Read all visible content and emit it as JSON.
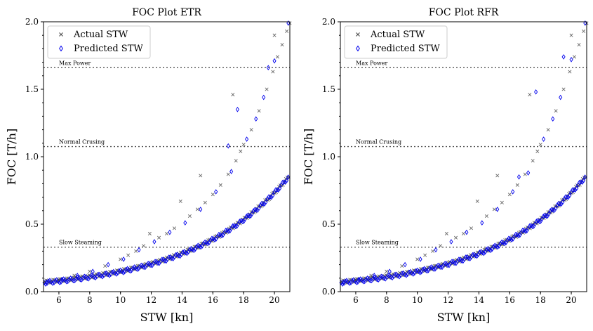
{
  "chart_data": [
    {
      "type": "scatter",
      "title": "FOC Plot ETR",
      "xlabel": "STW [kn]",
      "ylabel": "FOC [T/h]",
      "xlim": [
        5,
        21
      ],
      "ylim": [
        0.0,
        2.0
      ],
      "xticks": [
        "6",
        "8",
        "10",
        "12",
        "14",
        "16",
        "18",
        "20"
      ],
      "yticks": [
        "0.0",
        "0.5",
        "1.0",
        "1.5",
        "2.0"
      ],
      "grid": false,
      "legend_position": "top-left",
      "reference_lines": [
        {
          "label": "Max Power",
          "y": 1.66
        },
        {
          "label": "Normal Crusing",
          "y": 1.075
        },
        {
          "label": "Slow Steaming",
          "y": 0.33
        }
      ],
      "series": [
        {
          "name": "Actual STW",
          "marker": "x",
          "color": "#444444",
          "points": [
            [
              5.1,
              0.07
            ],
            [
              6.0,
              0.09
            ],
            [
              7.0,
              0.12
            ],
            [
              8.0,
              0.15
            ],
            [
              9.0,
              0.19
            ],
            [
              10.0,
              0.24
            ],
            [
              10.5,
              0.27
            ],
            [
              11.0,
              0.3
            ],
            [
              11.5,
              0.34
            ],
            [
              11.9,
              0.43
            ],
            [
              12.5,
              0.4
            ],
            [
              13.0,
              0.43
            ],
            [
              13.5,
              0.47
            ],
            [
              13.9,
              0.67
            ],
            [
              14.5,
              0.56
            ],
            [
              15.0,
              0.61
            ],
            [
              15.2,
              0.86
            ],
            [
              15.5,
              0.66
            ],
            [
              16.0,
              0.72
            ],
            [
              16.5,
              0.79
            ],
            [
              17.0,
              0.87
            ],
            [
              17.5,
              0.97
            ],
            [
              17.3,
              1.46
            ],
            [
              17.8,
              1.04
            ],
            [
              18.0,
              1.09
            ],
            [
              18.5,
              1.2
            ],
            [
              19.0,
              1.34
            ],
            [
              19.5,
              1.5
            ],
            [
              19.9,
              1.63
            ],
            [
              20.0,
              1.9
            ],
            [
              20.2,
              1.74
            ],
            [
              20.5,
              1.83
            ],
            [
              20.8,
              1.93
            ],
            [
              21.0,
              1.99
            ]
          ]
        },
        {
          "name": "Predicted STW",
          "marker": "diamond",
          "color": "#0000ee",
          "points": [
            [
              5.2,
              0.07
            ],
            [
              6.2,
              0.09
            ],
            [
              7.2,
              0.12
            ],
            [
              8.2,
              0.15
            ],
            [
              9.2,
              0.2
            ],
            [
              10.2,
              0.24
            ],
            [
              11.2,
              0.31
            ],
            [
              12.2,
              0.37
            ],
            [
              13.2,
              0.44
            ],
            [
              14.2,
              0.51
            ],
            [
              15.2,
              0.61
            ],
            [
              16.2,
              0.74
            ],
            [
              17.2,
              0.89
            ],
            [
              17.6,
              1.35
            ],
            [
              17.0,
              1.08
            ],
            [
              18.2,
              1.13
            ],
            [
              18.8,
              1.28
            ],
            [
              19.3,
              1.44
            ],
            [
              19.6,
              1.66
            ],
            [
              20.0,
              1.71
            ],
            [
              20.9,
              1.99
            ]
          ]
        }
      ]
    },
    {
      "type": "scatter",
      "title": "FOC Plot RFR",
      "xlabel": "STW [kn]",
      "ylabel": "FOC [T/h]",
      "xlim": [
        5,
        21
      ],
      "ylim": [
        0.0,
        2.0
      ],
      "xticks": [
        "6",
        "8",
        "10",
        "12",
        "14",
        "16",
        "18",
        "20"
      ],
      "yticks": [
        "0.0",
        "0.5",
        "1.0",
        "1.5",
        "2.0"
      ],
      "grid": false,
      "legend_position": "top-left",
      "reference_lines": [
        {
          "label": "Max Power",
          "y": 1.66
        },
        {
          "label": "Normal Crusing",
          "y": 1.075
        },
        {
          "label": "Slow Steaming",
          "y": 0.33
        }
      ],
      "series": [
        {
          "name": "Actual STW",
          "marker": "x",
          "color": "#444444",
          "points": [
            [
              5.1,
              0.07
            ],
            [
              6.0,
              0.09
            ],
            [
              7.0,
              0.12
            ],
            [
              8.0,
              0.15
            ],
            [
              9.0,
              0.19
            ],
            [
              10.0,
              0.24
            ],
            [
              10.5,
              0.27
            ],
            [
              11.0,
              0.3
            ],
            [
              11.5,
              0.34
            ],
            [
              11.9,
              0.43
            ],
            [
              12.5,
              0.4
            ],
            [
              13.0,
              0.43
            ],
            [
              13.5,
              0.47
            ],
            [
              13.9,
              0.67
            ],
            [
              14.5,
              0.56
            ],
            [
              15.0,
              0.61
            ],
            [
              15.2,
              0.86
            ],
            [
              15.5,
              0.66
            ],
            [
              16.0,
              0.72
            ],
            [
              16.5,
              0.79
            ],
            [
              17.0,
              0.87
            ],
            [
              17.5,
              0.97
            ],
            [
              17.3,
              1.46
            ],
            [
              17.8,
              1.04
            ],
            [
              18.0,
              1.09
            ],
            [
              18.5,
              1.2
            ],
            [
              19.0,
              1.34
            ],
            [
              19.5,
              1.5
            ],
            [
              19.9,
              1.63
            ],
            [
              20.0,
              1.9
            ],
            [
              20.2,
              1.74
            ],
            [
              20.5,
              1.83
            ],
            [
              20.8,
              1.93
            ],
            [
              21.0,
              1.99
            ]
          ]
        },
        {
          "name": "Predicted STW",
          "marker": "diamond",
          "color": "#0000ee",
          "points": [
            [
              5.2,
              0.07
            ],
            [
              6.2,
              0.09
            ],
            [
              7.2,
              0.12
            ],
            [
              8.2,
              0.15
            ],
            [
              9.2,
              0.2
            ],
            [
              10.2,
              0.24
            ],
            [
              11.2,
              0.31
            ],
            [
              12.2,
              0.37
            ],
            [
              13.2,
              0.44
            ],
            [
              14.2,
              0.51
            ],
            [
              15.2,
              0.61
            ],
            [
              16.2,
              0.74
            ],
            [
              16.6,
              0.85
            ],
            [
              17.2,
              0.88
            ],
            [
              17.7,
              1.48
            ],
            [
              18.2,
              1.13
            ],
            [
              18.8,
              1.28
            ],
            [
              19.3,
              1.44
            ],
            [
              19.5,
              1.74
            ],
            [
              20.0,
              1.72
            ],
            [
              20.9,
              1.99
            ]
          ]
        }
      ]
    }
  ]
}
